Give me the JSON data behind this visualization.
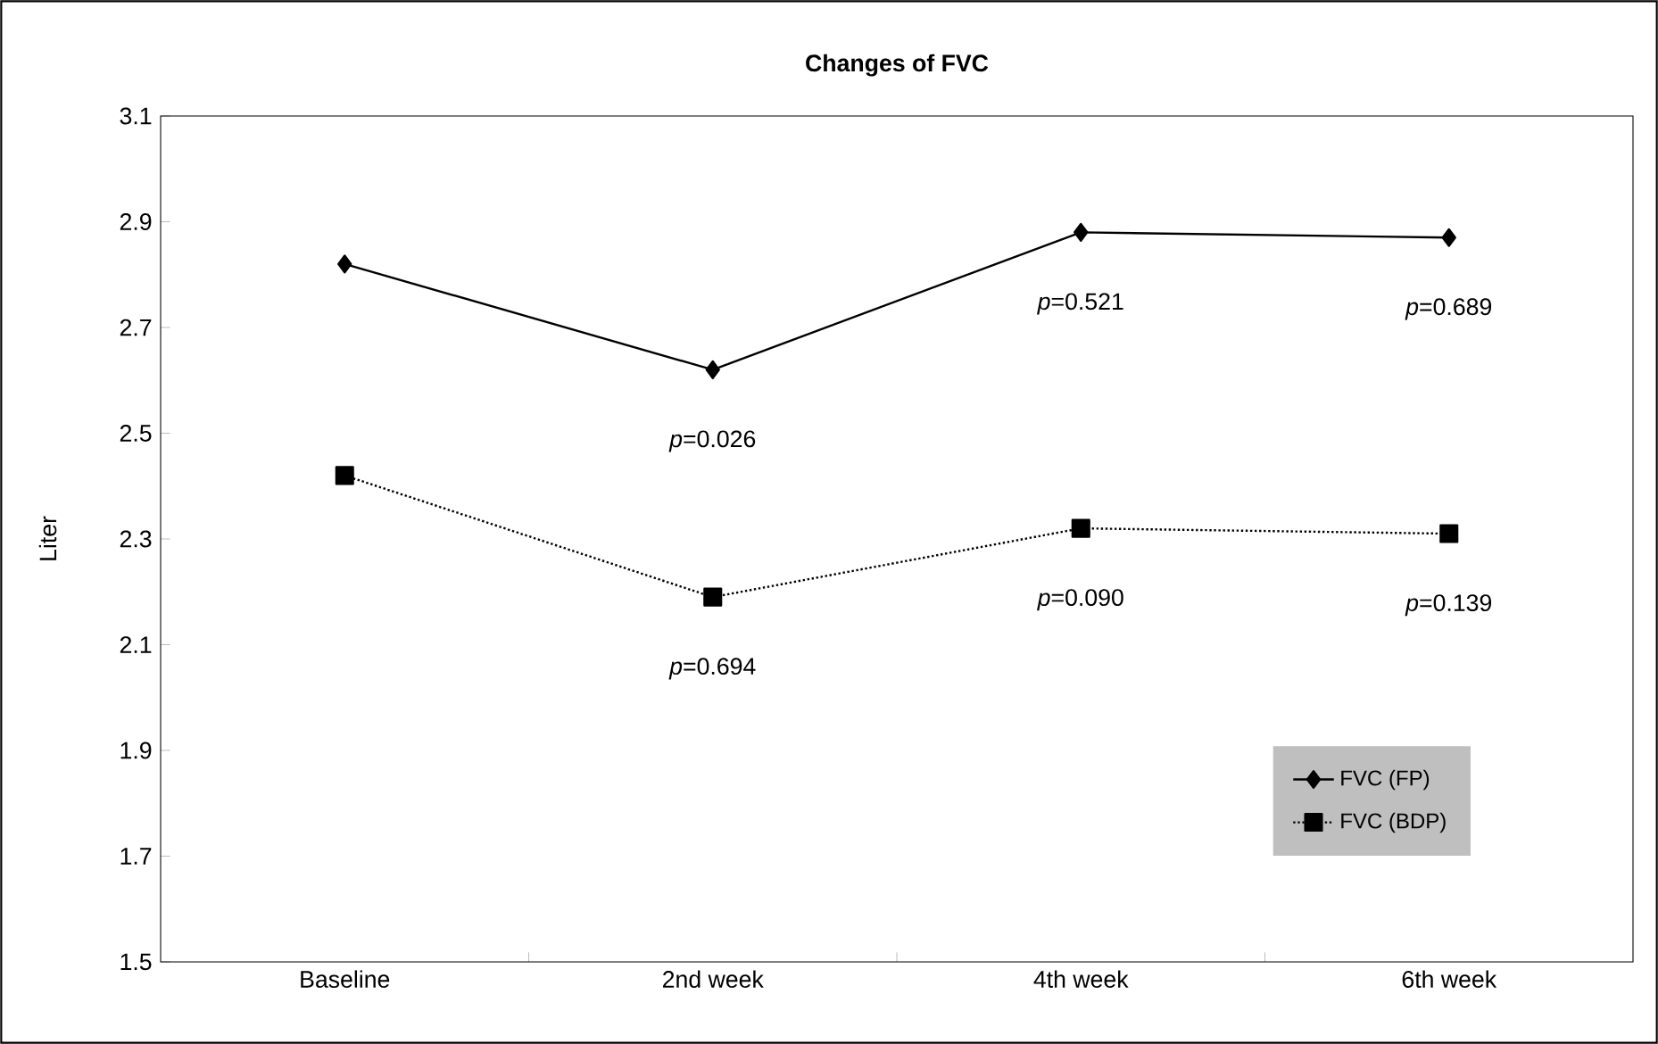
{
  "chart_data": {
    "type": "line",
    "title": "Changes of FVC",
    "ylabel": "Liter",
    "categories": [
      "Baseline",
      "2nd week",
      "4th week",
      "6th week"
    ],
    "series": [
      {
        "name": "FVC (FP)",
        "color": "#000000",
        "values": [
          2.82,
          2.62,
          2.88,
          2.87
        ],
        "marker": "diamond",
        "line_style": "solid"
      },
      {
        "name": "FVC (BDP)",
        "color": "#000000",
        "values": [
          2.42,
          2.19,
          2.32,
          2.31
        ],
        "marker": "square",
        "line_style": "dotted"
      }
    ],
    "ylim": [
      1.5,
      3.1
    ],
    "yticks": [
      1.5,
      1.7,
      1.9,
      2.1,
      2.3,
      2.5,
      2.7,
      2.9,
      3.1
    ],
    "annotations": [
      {
        "text": "*p*=0.026",
        "x": "2nd week",
        "y": 2.62
      },
      {
        "text": "*p*=0.521",
        "x": "4th week",
        "y": 2.88
      },
      {
        "text": "*p*=0.689",
        "x": "6th week",
        "y": 2.87
      },
      {
        "text": "*p*=0.694",
        "x": "2nd week",
        "y": 2.19
      },
      {
        "text": "*p*=0.090",
        "x": "4th week",
        "y": 2.32
      },
      {
        "text": "*p*=0.139",
        "x": "6th week",
        "y": 2.31
      }
    ],
    "grid": false,
    "legend": "bottom right"
  }
}
